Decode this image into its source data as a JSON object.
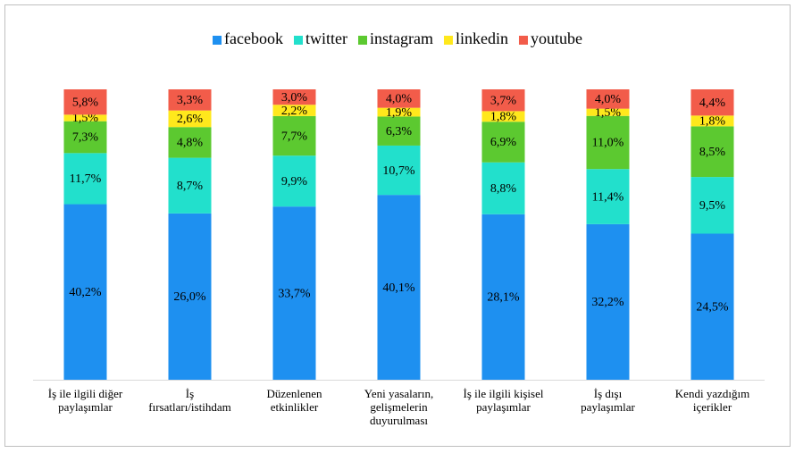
{
  "chart_data": {
    "type": "bar",
    "stacked": "percent",
    "legend": "top",
    "categories": [
      "İş ile ilgili diğer\npaylaşımlar",
      "İş\nfırsatları/istihdam",
      "Düzenlenen\netkinlikler",
      "Yeni yasaların,\ngelişmelerin\nduyurulması",
      "İş ile ilgili kişisel\npaylaşımlar",
      "İş dışı\npaylaşımlar",
      "Kendi yazdığım\niçerikler"
    ],
    "series": [
      {
        "name": "facebook",
        "color": "#1e90f0",
        "values": [
          40.2,
          26.0,
          33.7,
          40.1,
          28.1,
          32.2,
          24.5
        ],
        "value_labels": [
          "40,2%",
          "26,0%",
          "33,7%",
          "40,1%",
          "28,1%",
          "32,2%",
          "24,5%"
        ]
      },
      {
        "name": "twitter",
        "color": "#22e0cc",
        "values": [
          11.7,
          8.7,
          9.9,
          10.7,
          8.8,
          11.4,
          9.5
        ],
        "value_labels": [
          "11,7%",
          "8,7%",
          "9,9%",
          "10,7%",
          "8,8%",
          "11,4%",
          "9,5%"
        ]
      },
      {
        "name": "instagram",
        "color": "#5cc930",
        "values": [
          7.3,
          4.8,
          7.7,
          6.3,
          6.9,
          11.0,
          8.5
        ],
        "value_labels": [
          "7,3%",
          "4,8%",
          "7,7%",
          "6,3%",
          "6,9%",
          "11,0%",
          "8,5%"
        ]
      },
      {
        "name": "linkedin",
        "color": "#ffe81c",
        "values": [
          1.5,
          2.6,
          2.2,
          1.9,
          1.8,
          1.5,
          1.8
        ],
        "value_labels": [
          "1,5%",
          "2,6%",
          "2,2%",
          "1,9%",
          "1,8%",
          "1,5%",
          "1,8%"
        ]
      },
      {
        "name": "youtube",
        "color": "#f25c4a",
        "values": [
          5.8,
          3.3,
          3.0,
          4.0,
          3.7,
          4.0,
          4.4
        ],
        "value_labels": [
          "5,8%",
          "3,3%",
          "3,0%",
          "4,0%",
          "3,7%",
          "4,0%",
          "4,4%"
        ]
      }
    ]
  }
}
